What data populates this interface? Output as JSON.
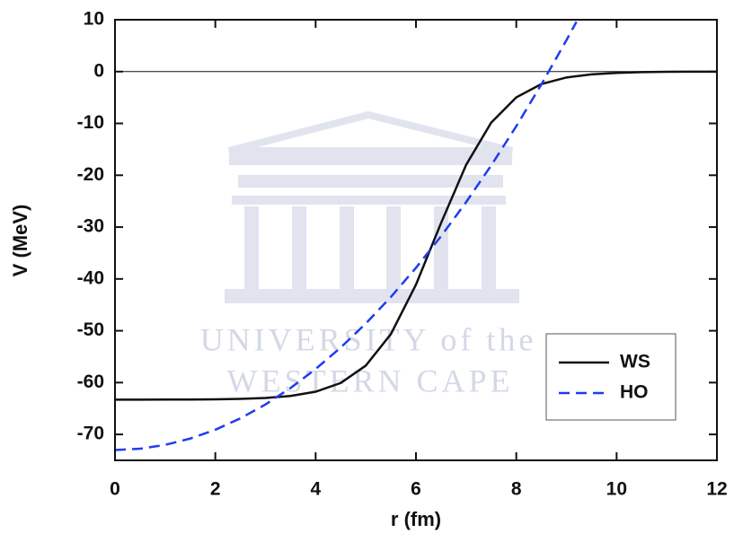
{
  "chart_data": {
    "type": "line",
    "xlabel": "r (fm)",
    "ylabel": "V (MeV)",
    "watermark": [
      "UNIVERSITY of the",
      "WESTERN CAPE"
    ],
    "xlim": [
      0,
      12
    ],
    "xticks": [
      0,
      2,
      4,
      6,
      8,
      10,
      12
    ],
    "ylim": [
      -75,
      10
    ],
    "yticks": [
      -70,
      -60,
      -50,
      -40,
      -30,
      -20,
      -10,
      0,
      10
    ],
    "reference_line": 0,
    "legend": "lower right",
    "series": [
      {
        "name": "WS",
        "color": "#111111",
        "dash": "solid",
        "x": [
          0,
          0.5,
          1,
          1.5,
          2,
          2.5,
          3,
          3.5,
          4,
          4.5,
          5,
          5.5,
          6,
          6.5,
          7,
          7.5,
          8,
          8.5,
          9,
          9.5,
          10,
          10.5,
          11,
          11.5,
          12
        ],
        "values": [
          -63.3,
          -63.29,
          -63.28,
          -63.27,
          -63.23,
          -63.14,
          -62.96,
          -62.58,
          -61.76,
          -60.07,
          -56.72,
          -50.64,
          -41.1,
          -29.22,
          -18.0,
          -9.84,
          -4.98,
          -2.41,
          -1.14,
          -0.53,
          -0.25,
          -0.11,
          -0.05,
          -0.02,
          -0.01
        ]
      },
      {
        "name": "HO",
        "color": "#1f3cf0",
        "dash": "dashed",
        "x": [
          0,
          0.5,
          1,
          1.5,
          2,
          2.5,
          3,
          3.5,
          4,
          4.5,
          5,
          5.5,
          6,
          6.5,
          7,
          7.5,
          8,
          8.5,
          9,
          9.2
        ],
        "values": [
          -73,
          -72.76,
          -72.02,
          -70.8,
          -69.1,
          -66.9,
          -64.22,
          -61.04,
          -57.38,
          -53.24,
          -48.6,
          -43.48,
          -37.86,
          -31.76,
          -25.18,
          -18.1,
          -10.54,
          -2.48,
          6.06,
          9.61
        ]
      }
    ]
  }
}
